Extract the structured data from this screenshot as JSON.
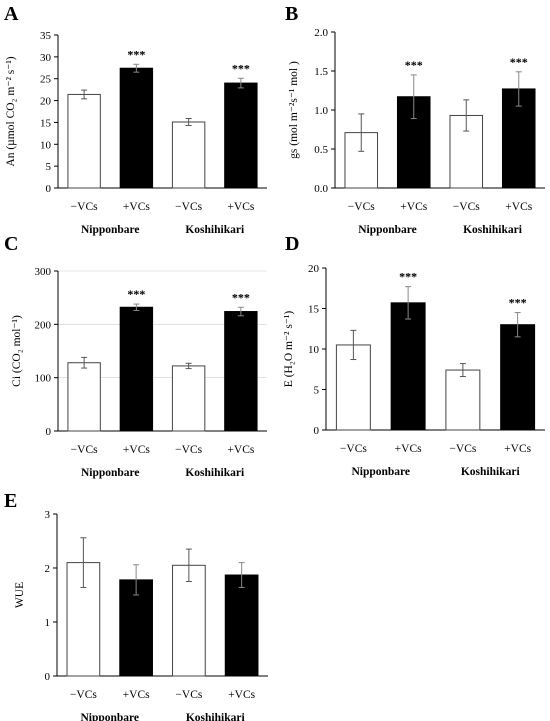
{
  "figure": {
    "x_categories": [
      "−VCs",
      "+VCs",
      "−VCs",
      "+VCs"
    ],
    "varieties": [
      "Nipponbare",
      "Koshihikari"
    ]
  },
  "chart_data": [
    {
      "panel": "A",
      "type": "bar",
      "ylabel": "An (µmol CO₂ m⁻² s⁻¹)",
      "ylim": [
        0,
        35
      ],
      "yticks": [
        "0",
        "5",
        "10",
        "15",
        "20",
        "25",
        "30",
        "35"
      ],
      "yticks_values": [
        0,
        5,
        10,
        15,
        20,
        25,
        30,
        35
      ],
      "grid": false,
      "categories": [
        "−VCs",
        "+VCs",
        "−VCs",
        "+VCs"
      ],
      "groups": [
        "Nipponbare",
        "Koshihikari"
      ],
      "values": [
        21.4,
        27.4,
        15.1,
        24.0
      ],
      "errors": [
        1.0,
        0.9,
        0.8,
        1.1
      ],
      "fills": [
        "#ffffff",
        "#000000",
        "#ffffff",
        "#000000"
      ],
      "annotations": [
        "",
        "***",
        "",
        "***"
      ]
    },
    {
      "panel": "B",
      "type": "bar",
      "ylabel": "gs (mol m⁻²s⁻¹ mol )",
      "ylim": [
        0,
        2.0
      ],
      "yticks": [
        "0.0",
        "0.5",
        "1.0",
        "1.5",
        "2.0"
      ],
      "yticks_values": [
        0,
        0.5,
        1.0,
        1.5,
        2.0
      ],
      "grid": false,
      "categories": [
        "−VCs",
        "+VCs",
        "−VCs",
        "+VCs"
      ],
      "groups": [
        "Nipponbare",
        "Koshihikari"
      ],
      "values": [
        0.71,
        1.17,
        0.93,
        1.27
      ],
      "errors": [
        0.24,
        0.28,
        0.2,
        0.22
      ],
      "fills": [
        "#ffffff",
        "#000000",
        "#ffffff",
        "#000000"
      ],
      "annotations": [
        "",
        "***",
        "",
        "***"
      ]
    },
    {
      "panel": "C",
      "type": "bar",
      "ylabel": "Ci (CO₂ mol⁻¹)",
      "ylim": [
        0,
        300
      ],
      "yticks": [
        "0",
        "100",
        "200",
        "300"
      ],
      "yticks_values": [
        0,
        100,
        200,
        300
      ],
      "grid": true,
      "categories": [
        "−VCs",
        "+VCs",
        "−VCs",
        "+VCs"
      ],
      "groups": [
        "Nipponbare",
        "Koshihikari"
      ],
      "values": [
        128,
        232,
        122,
        224
      ],
      "errors": [
        10,
        6,
        5,
        8
      ],
      "fills": [
        "#ffffff",
        "#000000",
        "#ffffff",
        "#000000"
      ],
      "annotations": [
        "",
        "***",
        "",
        "***"
      ]
    },
    {
      "panel": "D",
      "type": "bar",
      "ylabel": "E (H₂O m⁻² s⁻¹)",
      "ylim": [
        0,
        20
      ],
      "yticks": [
        "0",
        "5",
        "10",
        "15",
        "20"
      ],
      "yticks_values": [
        0,
        5,
        10,
        15,
        20
      ],
      "grid": false,
      "categories": [
        "−VCs",
        "+VCs",
        "−VCs",
        "+VCs"
      ],
      "groups": [
        "Nipponbare",
        "Koshihikari"
      ],
      "values": [
        10.5,
        15.7,
        7.4,
        13.0
      ],
      "errors": [
        1.8,
        2.0,
        0.8,
        1.5
      ],
      "fills": [
        "#ffffff",
        "#000000",
        "#ffffff",
        "#000000"
      ],
      "annotations": [
        "",
        "***",
        "",
        "***"
      ]
    },
    {
      "panel": "E",
      "type": "bar",
      "ylabel": "WUE",
      "ylim": [
        0,
        3
      ],
      "yticks": [
        "0",
        "1",
        "2",
        "3"
      ],
      "yticks_values": [
        0,
        1,
        2,
        3
      ],
      "grid": false,
      "categories": [
        "−VCs",
        "+VCs",
        "−VCs",
        "+VCs"
      ],
      "groups": [
        "Nipponbare",
        "Koshihikari"
      ],
      "values": [
        2.1,
        1.78,
        2.05,
        1.87
      ],
      "errors": [
        0.46,
        0.28,
        0.3,
        0.23
      ],
      "fills": [
        "#ffffff",
        "#000000",
        "#ffffff",
        "#000000"
      ],
      "annotations": [
        "",
        "",
        "",
        ""
      ]
    }
  ]
}
